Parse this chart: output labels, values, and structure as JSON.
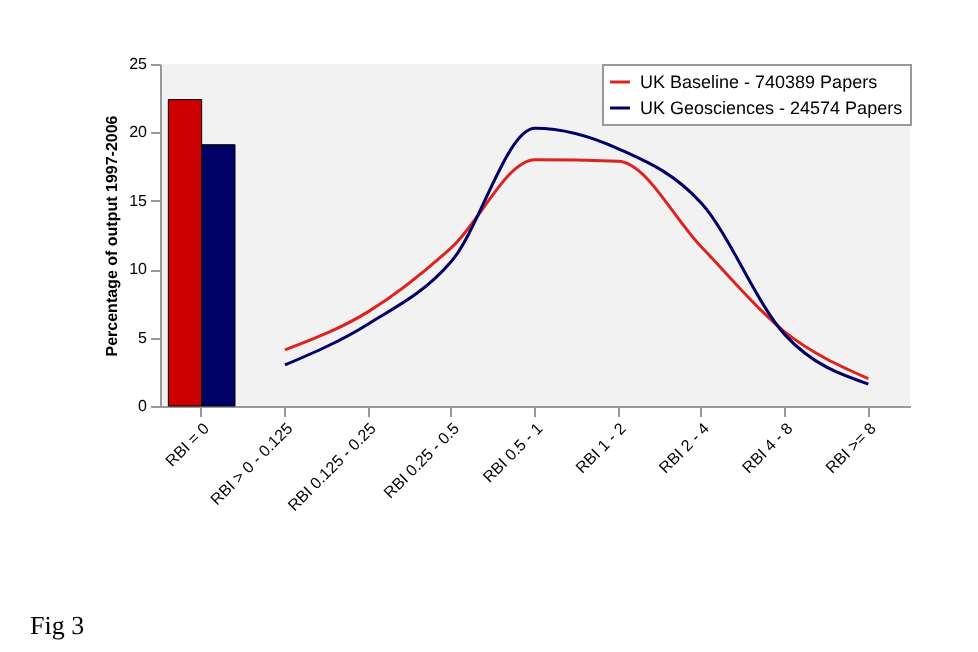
{
  "chart_data": {
    "type": "line",
    "ylabel": "Percentage of output 1997-2006",
    "categories": [
      "RBI = 0",
      "RBI > 0 - 0.125",
      "RBI 0.125 - 0.25",
      "RBI 0.25 - 0.5",
      "RBI 0.5 - 1",
      "RBI 1 - 2",
      "RBI 2 - 4",
      "RBI 4 - 8",
      "RBI >= 8"
    ],
    "series": [
      {
        "type": "bar",
        "color": "#cc0000",
        "values": [
          22.4,
          null,
          null,
          null,
          null,
          null,
          null,
          null,
          null
        ]
      },
      {
        "type": "bar",
        "color": "#000066",
        "values": [
          19.1,
          null,
          null,
          null,
          null,
          null,
          null,
          null,
          null
        ]
      },
      {
        "name": "UK Baseline - 740389 Papers",
        "color": "#dd2222",
        "values": [
          null,
          4.1,
          6.9,
          11.6,
          18.0,
          17.9,
          11.6,
          5.4,
          2.0
        ]
      },
      {
        "name": "UK Geosciences - 24574 Papers",
        "color": "#000066",
        "values": [
          null,
          3.0,
          6.0,
          10.6,
          20.3,
          18.8,
          14.8,
          5.2,
          1.6
        ]
      }
    ],
    "ylim": [
      0,
      25
    ],
    "yticks": [
      0,
      5,
      10,
      15,
      20,
      25
    ],
    "grid": false,
    "legend": "top right",
    "marker": "none",
    "line_style": "solid",
    "annotations": [
      "Fig 3"
    ]
  }
}
